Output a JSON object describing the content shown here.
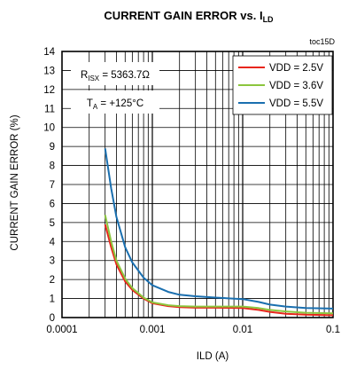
{
  "chart_data": {
    "type": "line",
    "title": "CURRENT GAIN ERROR vs. I",
    "title_sub": "LD",
    "tag": "toc15D",
    "xlabel": "ILD (A)",
    "ylabel": "CURRENT GAIN ERROR  (%)",
    "xscale": "log",
    "xlim": [
      0.0001,
      0.1
    ],
    "ylim": [
      0,
      14
    ],
    "x_ticks": [
      "0.0001",
      "0.001",
      "0.01",
      "0.1"
    ],
    "y_ticks": [
      "0",
      "1",
      "2",
      "3",
      "4",
      "5",
      "6",
      "7",
      "8",
      "9",
      "10",
      "11",
      "12",
      "13",
      "14"
    ],
    "grid": true,
    "legend_position": "top-right",
    "annotations": [
      {
        "main": "R",
        "sub": "ISX",
        "rest": " = 5363.7Ω"
      },
      {
        "main": "T",
        "sub": "A",
        "rest": " = +125°C"
      }
    ],
    "series": [
      {
        "name": "VDD = 2.5V",
        "color": "#e8261c",
        "x": [
          0.0003,
          0.00035,
          0.0004,
          0.0005,
          0.0006,
          0.0008,
          0.001,
          0.0015,
          0.002,
          0.003,
          0.005,
          0.01,
          0.015,
          0.02,
          0.03,
          0.05,
          0.1
        ],
        "y": [
          4.9,
          3.7,
          2.8,
          1.9,
          1.45,
          1.0,
          0.75,
          0.6,
          0.55,
          0.52,
          0.52,
          0.5,
          0.4,
          0.3,
          0.2,
          0.15,
          0.12
        ]
      },
      {
        "name": "VDD = 3.6V",
        "color": "#8cc63e",
        "x": [
          0.0003,
          0.00035,
          0.0004,
          0.0005,
          0.0006,
          0.0008,
          0.001,
          0.0015,
          0.002,
          0.003,
          0.005,
          0.01,
          0.015,
          0.02,
          0.03,
          0.05,
          0.1
        ],
        "y": [
          5.4,
          4.0,
          3.0,
          2.05,
          1.55,
          1.05,
          0.8,
          0.65,
          0.6,
          0.58,
          0.58,
          0.58,
          0.5,
          0.4,
          0.32,
          0.25,
          0.22
        ]
      },
      {
        "name": "VDD = 5.5V",
        "color": "#1a6faf",
        "x": [
          0.0003,
          0.00035,
          0.0004,
          0.0005,
          0.0006,
          0.0008,
          0.001,
          0.0015,
          0.002,
          0.003,
          0.005,
          0.01,
          0.015,
          0.02,
          0.03,
          0.05,
          0.1
        ],
        "y": [
          8.9,
          6.8,
          5.3,
          3.7,
          2.9,
          2.1,
          1.7,
          1.35,
          1.2,
          1.12,
          1.05,
          0.97,
          0.82,
          0.68,
          0.58,
          0.5,
          0.47
        ]
      }
    ]
  }
}
